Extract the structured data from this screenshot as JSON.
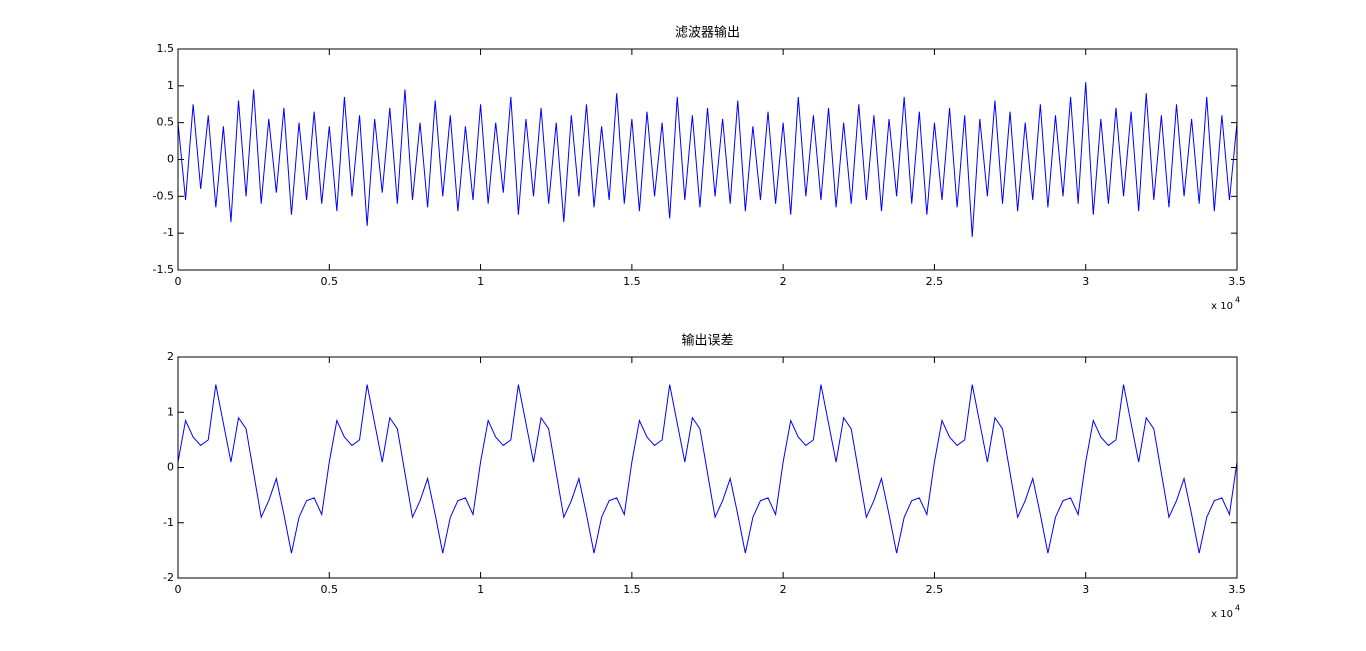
{
  "chart_data": [
    {
      "type": "line",
      "title": "滤波器输出",
      "x": [
        0,
        250,
        500,
        750,
        1000,
        1250,
        1500,
        1750,
        2000,
        2250,
        2500,
        2750,
        3000,
        3250,
        3500,
        3750,
        4000,
        4250,
        4500,
        4750,
        5000,
        5250,
        5500,
        5750,
        6000,
        6250,
        6500,
        6750,
        7000,
        7250,
        7500,
        7750,
        8000,
        8250,
        8500,
        8750,
        9000,
        9250,
        9500,
        9750,
        10000,
        10250,
        10500,
        10750,
        11000,
        11250,
        11500,
        11750,
        12000,
        12250,
        12500,
        12750,
        13000,
        13250,
        13500,
        13750,
        14000,
        14250,
        14500,
        14750,
        15000,
        15250,
        15500,
        15750,
        16000,
        16250,
        16500,
        16750,
        17000,
        17250,
        17500,
        17750,
        18000,
        18250,
        18500,
        18750,
        19000,
        19250,
        19500,
        19750,
        20000,
        20250,
        20500,
        20750,
        21000,
        21250,
        21500,
        21750,
        22000,
        22250,
        22500,
        22750,
        23000,
        23250,
        23500,
        23750,
        24000,
        24250,
        24500,
        24750,
        25000,
        25250,
        25500,
        25750,
        26000,
        26250,
        26500,
        26750,
        27000,
        27250,
        27500,
        27750,
        28000,
        28250,
        28500,
        28750,
        29000,
        29250,
        29500,
        29750,
        30000,
        30250,
        30500,
        30750,
        31000,
        31250,
        31500,
        31750,
        32000,
        32250,
        32500,
        32750,
        33000,
        33250,
        33500,
        33750,
        34000,
        34250,
        34500,
        34750,
        35000
      ],
      "series": [
        {
          "color": "#0000ff",
          "values": [
            0.5,
            -0.55,
            0.75,
            -0.4,
            0.6,
            -0.65,
            0.45,
            -0.85,
            0.8,
            -0.5,
            0.95,
            -0.6,
            0.55,
            -0.45,
            0.7,
            -0.75,
            0.5,
            -0.55,
            0.65,
            -0.6,
            0.45,
            -0.7,
            0.85,
            -0.5,
            0.6,
            -0.9,
            0.55,
            -0.45,
            0.7,
            -0.6,
            0.95,
            -0.55,
            0.5,
            -0.65,
            0.8,
            -0.5,
            0.6,
            -0.7,
            0.45,
            -0.55,
            0.75,
            -0.6,
            0.5,
            -0.45,
            0.85,
            -0.75,
            0.55,
            -0.5,
            0.7,
            -0.6,
            0.5,
            -0.85,
            0.6,
            -0.5,
            0.75,
            -0.65,
            0.45,
            -0.55,
            0.9,
            -0.6,
            0.55,
            -0.7,
            0.65,
            -0.5,
            0.5,
            -0.8,
            0.85,
            -0.55,
            0.6,
            -0.65,
            0.7,
            -0.5,
            0.55,
            -0.6,
            0.8,
            -0.7,
            0.45,
            -0.55,
            0.65,
            -0.6,
            0.5,
            -0.75,
            0.85,
            -0.5,
            0.6,
            -0.55,
            0.7,
            -0.65,
            0.5,
            -0.6,
            0.75,
            -0.55,
            0.6,
            -0.7,
            0.55,
            -0.5,
            0.85,
            -0.6,
            0.65,
            -0.75,
            0.5,
            -0.55,
            0.7,
            -0.65,
            0.6,
            -1.05,
            0.55,
            -0.5,
            0.8,
            -0.6,
            0.65,
            -0.7,
            0.5,
            -0.55,
            0.75,
            -0.65,
            0.6,
            -0.5,
            0.85,
            -0.6,
            1.05,
            -0.75,
            0.55,
            -0.6,
            0.7,
            -0.5,
            0.65,
            -0.7,
            0.9,
            -0.55,
            0.6,
            -0.65,
            0.75,
            -0.5,
            0.55,
            -0.6,
            0.85,
            -0.7,
            0.6,
            -0.55,
            0.5
          ]
        }
      ],
      "xlim": [
        0,
        35000
      ],
      "xticks": [
        0,
        {
          "value": 5000,
          "label": "0.5"
        },
        {
          "value": 10000,
          "label": "1"
        },
        {
          "value": 15000,
          "label": "1.5"
        },
        {
          "value": 20000,
          "label": "2"
        },
        {
          "value": 25000,
          "label": "2.5"
        },
        {
          "value": 30000,
          "label": "3"
        },
        {
          "value": 35000,
          "label": "3.5"
        }
      ],
      "x_exponent_base": "x 10",
      "x_exponent": "4",
      "ylim": [
        -1.5,
        1.5
      ],
      "yticks": [
        -1.5,
        -1,
        -0.5,
        0,
        0.5,
        1,
        1.5
      ],
      "grid": false
    },
    {
      "type": "line",
      "title": "输出误差",
      "x": [
        0,
        250,
        500,
        750,
        1000,
        1250,
        1500,
        1750,
        2000,
        2250,
        2500,
        2750,
        3000,
        3250,
        3500,
        3750,
        4000,
        4250,
        4500,
        4750,
        5000,
        5250,
        5500,
        5750,
        6000,
        6250,
        6500,
        6750,
        7000,
        7250,
        7500,
        7750,
        8000,
        8250,
        8500,
        8750,
        9000,
        9250,
        9500,
        9750,
        10000,
        10250,
        10500,
        10750,
        11000,
        11250,
        11500,
        11750,
        12000,
        12250,
        12500,
        12750,
        13000,
        13250,
        13500,
        13750,
        14000,
        14250,
        14500,
        14750,
        15000,
        15250,
        15500,
        15750,
        16000,
        16250,
        16500,
        16750,
        17000,
        17250,
        17500,
        17750,
        18000,
        18250,
        18500,
        18750,
        19000,
        19250,
        19500,
        19750,
        20000,
        20250,
        20500,
        20750,
        21000,
        21250,
        21500,
        21750,
        22000,
        22250,
        22500,
        22750,
        23000,
        23250,
        23500,
        23750,
        24000,
        24250,
        24500,
        24750,
        25000,
        25250,
        25500,
        25750,
        26000,
        26250,
        26500,
        26750,
        27000,
        27250,
        27500,
        27750,
        28000,
        28250,
        28500,
        28750,
        29000,
        29250,
        29500,
        29750,
        30000,
        30250,
        30500,
        30750,
        31000,
        31250,
        31500,
        31750,
        32000,
        32250,
        32500,
        32750,
        33000,
        33250,
        33500,
        33750,
        34000,
        34250,
        34500,
        34750,
        35000
      ],
      "series": [
        {
          "color": "#0000ff",
          "values": [
            0.1,
            0.85,
            0.55,
            0.4,
            0.5,
            1.5,
            0.8,
            0.1,
            0.9,
            0.7,
            -0.1,
            -0.9,
            -0.6,
            -0.2,
            -0.85,
            -1.55,
            -0.9,
            -0.6,
            -0.55,
            -0.85,
            0.1,
            0.85,
            0.55,
            0.4,
            0.5,
            1.5,
            0.8,
            0.1,
            0.9,
            0.7,
            -0.1,
            -0.9,
            -0.6,
            -0.2,
            -0.85,
            -1.55,
            -0.9,
            -0.6,
            -0.55,
            -0.85,
            0.1,
            0.85,
            0.55,
            0.4,
            0.5,
            1.5,
            0.8,
            0.1,
            0.9,
            0.7,
            -0.1,
            -0.9,
            -0.6,
            -0.2,
            -0.85,
            -1.55,
            -0.9,
            -0.6,
            -0.55,
            -0.85,
            0.1,
            0.85,
            0.55,
            0.4,
            0.5,
            1.5,
            0.8,
            0.1,
            0.9,
            0.7,
            -0.1,
            -0.9,
            -0.6,
            -0.2,
            -0.85,
            -1.55,
            -0.9,
            -0.6,
            -0.55,
            -0.85,
            0.1,
            0.85,
            0.55,
            0.4,
            0.5,
            1.5,
            0.8,
            0.1,
            0.9,
            0.7,
            -0.1,
            -0.9,
            -0.6,
            -0.2,
            -0.85,
            -1.55,
            -0.9,
            -0.6,
            -0.55,
            -0.85,
            0.1,
            0.85,
            0.55,
            0.4,
            0.5,
            1.5,
            0.8,
            0.1,
            0.9,
            0.7,
            -0.1,
            -0.9,
            -0.6,
            -0.2,
            -0.85,
            -1.55,
            -0.9,
            -0.6,
            -0.55,
            -0.85,
            0.1,
            0.85,
            0.55,
            0.4,
            0.5,
            1.5,
            0.8,
            0.1,
            0.9,
            0.7,
            -0.1,
            -0.9,
            -0.6,
            -0.2,
            -0.85,
            -1.55,
            -0.9,
            -0.6,
            -0.55,
            -0.85,
            0.1
          ]
        }
      ],
      "xlim": [
        0,
        35000
      ],
      "xticks": [
        0,
        {
          "value": 5000,
          "label": "0.5"
        },
        {
          "value": 10000,
          "label": "1"
        },
        {
          "value": 15000,
          "label": "1.5"
        },
        {
          "value": 20000,
          "label": "2"
        },
        {
          "value": 25000,
          "label": "2.5"
        },
        {
          "value": 30000,
          "label": "3"
        },
        {
          "value": 35000,
          "label": "3.5"
        }
      ],
      "x_exponent_base": "x 10",
      "x_exponent": "4",
      "ylim": [
        -2,
        2
      ],
      "yticks": [
        -2,
        -1,
        0,
        1,
        2
      ],
      "grid": false
    }
  ]
}
